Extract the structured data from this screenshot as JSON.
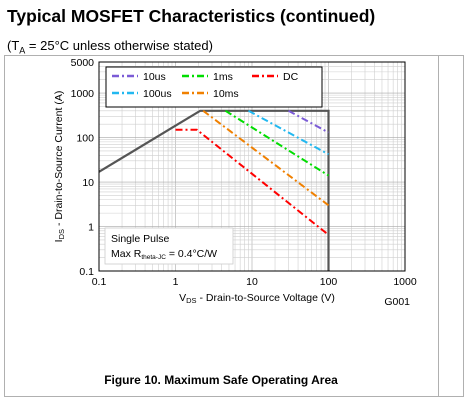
{
  "header": {
    "title": "Typical MOSFET Characteristics (continued)",
    "subtitle_prefix": "(T",
    "subtitle_sub": "A",
    "subtitle_suffix": " = 25°C unless otherwise stated)"
  },
  "caption": "Figure 10. Maximum Safe Operating Area",
  "chart_data": {
    "type": "line",
    "title": "",
    "xlabel": "VDS - Drain-to-Source Voltage (V)",
    "ylabel": "IDS - Drain-to-Source Current (A)",
    "x_scale": "log",
    "y_scale": "log",
    "xlim": [
      0.1,
      1000
    ],
    "ylim": [
      0.1,
      5000
    ],
    "x_ticks": [
      {
        "value": 0.1,
        "label": "0.1"
      },
      {
        "value": 1,
        "label": "1"
      },
      {
        "value": 10,
        "label": "10"
      },
      {
        "value": 100,
        "label": "100"
      },
      {
        "value": 1000,
        "label": "1000"
      }
    ],
    "y_ticks": [
      {
        "value": 0.1,
        "label": "0.1"
      },
      {
        "value": 1,
        "label": "1"
      },
      {
        "value": 10,
        "label": "10"
      },
      {
        "value": 100,
        "label": "100"
      },
      {
        "value": 1000,
        "label": "1000"
      },
      {
        "value": 5000,
        "label": "5000"
      }
    ],
    "grid": true,
    "legend_position": "top-left",
    "series": [
      {
        "name": "10us",
        "color": "#7b5bd6",
        "style": "dash-dot",
        "points": [
          [
            30,
            400
          ],
          [
            100,
            130
          ]
        ]
      },
      {
        "name": "1ms",
        "color": "#00dd00",
        "style": "dash-dot",
        "points": [
          [
            4.5,
            400
          ],
          [
            100,
            14
          ]
        ]
      },
      {
        "name": "DC",
        "color": "#ff0000",
        "style": "dash-dot",
        "points": [
          [
            1,
            150
          ],
          [
            1.9,
            150
          ],
          [
            100,
            0.65
          ]
        ]
      },
      {
        "name": "100us",
        "color": "#22b8f0",
        "style": "dash-dot",
        "points": [
          [
            9,
            400
          ],
          [
            100,
            42
          ]
        ]
      },
      {
        "name": "10ms",
        "color": "#f08000",
        "style": "dash-dot",
        "points": [
          [
            2.3,
            400
          ],
          [
            100,
            3
          ]
        ]
      }
    ],
    "boundary": {
      "color": "#555555",
      "points": [
        [
          0.1,
          17
        ],
        [
          2.1,
          400
        ],
        [
          100,
          400
        ],
        [
          100,
          0.1
        ]
      ]
    },
    "annotation": {
      "line1": "Single Pulse",
      "line2_prefix": "Max R",
      "line2_sub": "theta-JC",
      "line2_suffix": " = 0.4°C/W"
    },
    "figure_code": "G001"
  }
}
